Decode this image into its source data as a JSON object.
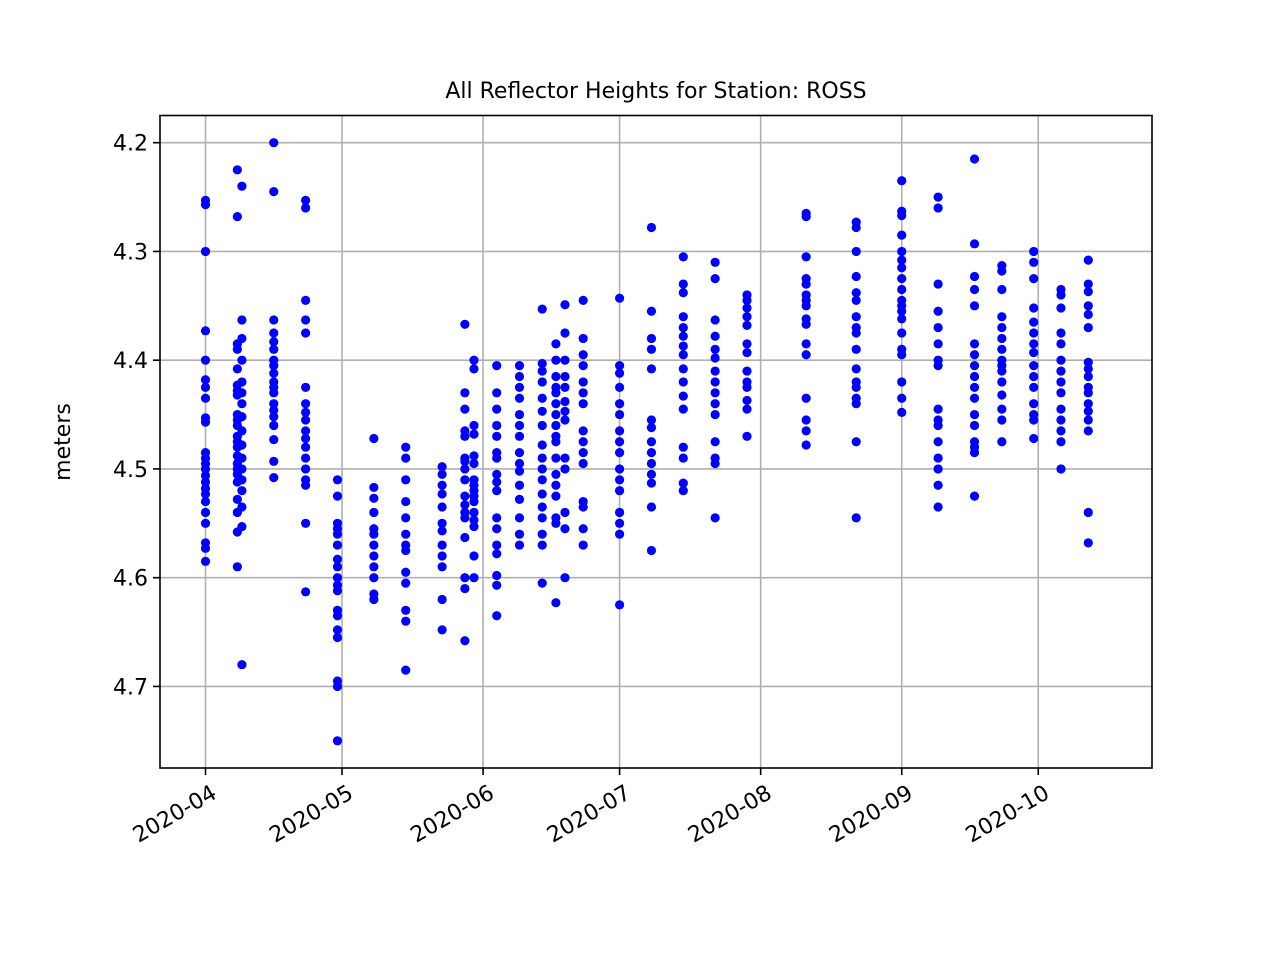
{
  "chart_data": {
    "type": "scatter",
    "title": "All Reflector Heights for Station: ROSS",
    "xlabel": "",
    "ylabel": "meters",
    "y_inverted": true,
    "ylim": [
      4.775,
      4.175
    ],
    "xlim": [
      "2020-03-22",
      "2020-10-26"
    ],
    "grid": true,
    "marker_color": "#0000ff",
    "x_ticks": [
      "2020-04-01",
      "2020-05-01",
      "2020-06-01",
      "2020-07-01",
      "2020-08-01",
      "2020-09-01",
      "2020-10-01"
    ],
    "x_tick_labels": [
      "2020-04",
      "2020-05",
      "2020-06",
      "2020-07",
      "2020-08",
      "2020-09",
      "2020-10"
    ],
    "y_ticks": [
      4.2,
      4.3,
      4.4,
      4.5,
      4.6,
      4.7
    ],
    "y_tick_labels": [
      "4.2",
      "4.3",
      "4.4",
      "4.5",
      "4.6",
      "4.7"
    ],
    "series": [
      {
        "points": [
          {
            "x": "2020-04-01",
            "y": [
              4.253,
              4.257,
              4.3,
              4.373,
              4.4,
              4.418,
              4.425,
              4.435,
              4.453,
              4.457,
              4.485,
              4.49,
              4.495,
              4.5,
              4.506,
              4.512,
              4.518,
              4.523,
              4.53,
              4.54,
              4.55,
              4.568,
              4.573,
              4.585
            ]
          },
          {
            "x": "2020-04-08",
            "y": [
              4.225,
              4.268,
              4.385,
              4.39,
              4.408,
              4.423,
              4.428,
              4.432,
              4.45,
              4.455,
              4.46,
              4.47,
              4.475,
              4.48,
              4.488,
              4.495,
              4.5,
              4.505,
              4.512,
              4.528,
              4.54,
              4.558,
              4.59
            ]
          },
          {
            "x": "2020-04-09",
            "y": [
              4.24,
              4.363,
              4.38,
              4.4,
              4.42,
              4.43,
              4.44,
              4.452,
              4.465,
              4.478,
              4.49,
              4.5,
              4.51,
              4.52,
              4.535,
              4.553,
              4.68
            ]
          },
          {
            "x": "2020-04-16",
            "y": [
              4.2,
              4.245,
              4.363,
              4.375,
              4.383,
              4.39,
              4.4,
              4.405,
              4.412,
              4.42,
              4.425,
              4.43,
              4.44,
              4.446,
              4.452,
              4.46,
              4.473,
              4.493,
              4.508
            ]
          },
          {
            "x": "2020-04-23",
            "y": [
              4.253,
              4.26,
              4.345,
              4.363,
              4.375,
              4.425,
              4.44,
              4.448,
              4.455,
              4.465,
              4.472,
              4.48,
              4.49,
              4.5,
              4.51,
              4.515,
              4.55,
              4.613
            ]
          },
          {
            "x": "2020-04-30",
            "y": [
              4.51,
              4.525,
              4.55,
              4.555,
              4.56,
              4.57,
              4.583,
              4.59,
              4.6,
              4.607,
              4.612,
              4.63,
              4.635,
              4.648,
              4.655,
              4.695,
              4.7,
              4.75
            ]
          },
          {
            "x": "2020-05-08",
            "y": [
              4.472,
              4.517,
              4.527,
              4.54,
              4.555,
              4.56,
              4.57,
              4.58,
              4.59,
              4.6,
              4.615,
              4.62
            ]
          },
          {
            "x": "2020-05-15",
            "y": [
              4.48,
              4.49,
              4.51,
              4.53,
              4.545,
              4.56,
              4.57,
              4.575,
              4.595,
              4.605,
              4.63,
              4.64,
              4.685
            ]
          },
          {
            "x": "2020-05-23",
            "y": [
              4.498,
              4.505,
              4.515,
              4.523,
              4.535,
              4.55,
              4.557,
              4.57,
              4.58,
              4.59,
              4.62,
              4.648
            ]
          },
          {
            "x": "2020-05-28",
            "y": [
              4.367,
              4.43,
              4.445,
              4.465,
              4.47,
              4.49,
              4.493,
              4.5,
              4.51,
              4.525,
              4.533,
              4.54,
              4.545,
              4.563,
              4.6,
              4.61,
              4.658
            ]
          },
          {
            "x": "2020-05-30",
            "y": [
              4.4,
              4.408,
              4.46,
              4.468,
              4.488,
              4.495,
              4.51,
              4.515,
              4.52,
              4.525,
              4.53,
              4.54,
              4.547,
              4.553,
              4.58,
              4.6
            ]
          },
          {
            "x": "2020-06-04",
            "y": [
              4.405,
              4.43,
              4.445,
              4.46,
              4.47,
              4.485,
              4.49,
              4.505,
              4.512,
              4.52,
              4.545,
              4.555,
              4.57,
              4.578,
              4.598,
              4.607,
              4.635
            ]
          },
          {
            "x": "2020-06-09",
            "y": [
              4.405,
              4.415,
              4.425,
              4.435,
              4.45,
              4.46,
              4.47,
              4.485,
              4.495,
              4.502,
              4.515,
              4.528,
              4.545,
              4.56,
              4.57
            ]
          },
          {
            "x": "2020-06-14",
            "y": [
              4.353,
              4.403,
              4.41,
              4.42,
              4.435,
              4.447,
              4.46,
              4.478,
              4.49,
              4.5,
              4.51,
              4.523,
              4.535,
              4.545,
              4.56,
              4.57,
              4.605
            ]
          },
          {
            "x": "2020-06-17",
            "y": [
              4.385,
              4.4,
              4.415,
              4.425,
              4.43,
              4.44,
              4.45,
              4.46,
              4.47,
              4.475,
              4.49,
              4.505,
              4.515,
              4.525,
              4.545,
              4.55,
              4.623
            ]
          },
          {
            "x": "2020-06-19",
            "y": [
              4.349,
              4.375,
              4.4,
              4.415,
              4.425,
              4.438,
              4.447,
              4.455,
              4.49,
              4.5,
              4.54,
              4.555,
              4.6
            ]
          },
          {
            "x": "2020-06-23",
            "y": [
              4.345,
              4.38,
              4.395,
              4.405,
              4.42,
              4.43,
              4.44,
              4.465,
              4.475,
              4.485,
              4.495,
              4.53,
              4.535,
              4.555,
              4.57
            ]
          },
          {
            "x": "2020-07-01",
            "y": [
              4.343,
              4.405,
              4.412,
              4.425,
              4.44,
              4.45,
              4.465,
              4.475,
              4.485,
              4.5,
              4.51,
              4.52,
              4.54,
              4.55,
              4.56,
              4.625
            ]
          },
          {
            "x": "2020-07-08",
            "y": [
              4.278,
              4.355,
              4.38,
              4.39,
              4.408,
              4.455,
              4.462,
              4.475,
              4.485,
              4.495,
              4.505,
              4.513,
              4.535,
              4.575
            ]
          },
          {
            "x": "2020-07-15",
            "y": [
              4.305,
              4.33,
              4.338,
              4.36,
              4.37,
              4.378,
              4.387,
              4.395,
              4.408,
              4.42,
              4.433,
              4.445,
              4.48,
              4.49,
              4.513,
              4.52
            ]
          },
          {
            "x": "2020-07-22",
            "y": [
              4.31,
              4.325,
              4.363,
              4.378,
              4.39,
              4.398,
              4.41,
              4.42,
              4.43,
              4.44,
              4.45,
              4.475,
              4.49,
              4.495,
              4.545
            ]
          },
          {
            "x": "2020-07-29",
            "y": [
              4.34,
              4.345,
              4.352,
              4.36,
              4.368,
              4.385,
              4.393,
              4.41,
              4.42,
              4.425,
              4.437,
              4.445,
              4.47
            ]
          },
          {
            "x": "2020-08-11",
            "y": [
              4.265,
              4.268,
              4.305,
              4.325,
              4.33,
              4.34,
              4.345,
              4.35,
              4.362,
              4.367,
              4.385,
              4.395,
              4.435,
              4.455,
              4.465,
              4.478
            ]
          },
          {
            "x": "2020-08-22",
            "y": [
              4.273,
              4.278,
              4.3,
              4.323,
              4.338,
              4.345,
              4.36,
              4.37,
              4.375,
              4.39,
              4.408,
              4.42,
              4.425,
              4.435,
              4.44,
              4.475,
              4.545
            ]
          },
          {
            "x": "2020-09-01",
            "y": [
              4.235,
              4.263,
              4.267,
              4.285,
              4.3,
              4.308,
              4.315,
              4.325,
              4.335,
              4.345,
              4.35,
              4.355,
              4.362,
              4.375,
              4.39,
              4.395,
              4.42,
              4.435,
              4.448
            ]
          },
          {
            "x": "2020-09-09",
            "y": [
              4.25,
              4.26,
              4.33,
              4.355,
              4.37,
              4.385,
              4.4,
              4.405,
              4.445,
              4.455,
              4.46,
              4.475,
              4.49,
              4.5,
              4.515,
              4.535
            ]
          },
          {
            "x": "2020-09-17",
            "y": [
              4.215,
              4.293,
              4.323,
              4.335,
              4.35,
              4.385,
              4.395,
              4.405,
              4.415,
              4.425,
              4.435,
              4.45,
              4.46,
              4.475,
              4.48,
              4.485,
              4.525
            ]
          },
          {
            "x": "2020-09-23",
            "y": [
              4.313,
              4.318,
              4.335,
              4.36,
              4.37,
              4.38,
              4.39,
              4.4,
              4.405,
              4.41,
              4.42,
              4.432,
              4.445,
              4.455,
              4.475
            ]
          },
          {
            "x": "2020-09-30",
            "y": [
              4.3,
              4.31,
              4.325,
              4.352,
              4.365,
              4.375,
              4.385,
              4.393,
              4.405,
              4.415,
              4.425,
              4.44,
              4.45,
              4.455,
              4.472
            ]
          },
          {
            "x": "2020-10-06",
            "y": [
              4.335,
              4.34,
              4.352,
              4.375,
              4.385,
              4.4,
              4.41,
              4.42,
              4.43,
              4.445,
              4.455,
              4.465,
              4.475,
              4.5
            ]
          },
          {
            "x": "2020-10-12",
            "y": [
              4.308,
              4.33,
              4.337,
              4.35,
              4.358,
              4.37,
              4.402,
              4.408,
              4.415,
              4.425,
              4.43,
              4.44,
              4.447,
              4.455,
              4.465,
              4.54,
              4.568
            ]
          }
        ]
      }
    ]
  }
}
